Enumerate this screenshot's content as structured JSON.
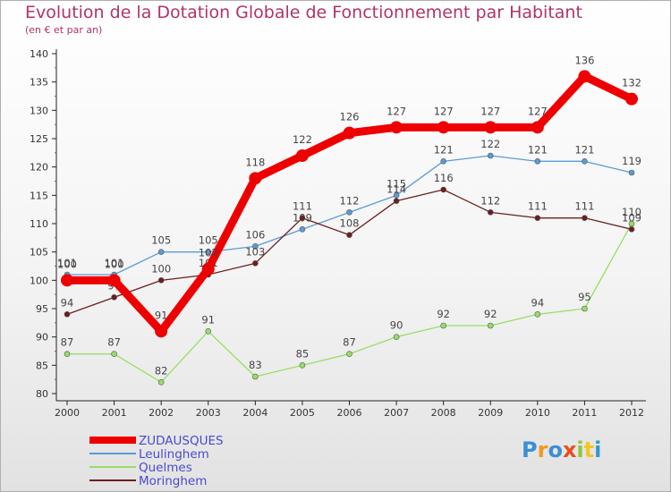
{
  "title": "Evolution de la Dotation Globale de Fonctionnement par Habitant",
  "subtitle": "(en € et par an)",
  "brand": {
    "letters": [
      "P",
      "r",
      "o",
      "x",
      "i",
      "t",
      "i"
    ],
    "colors": [
      "#3a8fd6",
      "#f29a1f",
      "#3a8fd6",
      "#e94e1b",
      "#8cc63f",
      "#f2c71f",
      "#2e9ad0"
    ]
  },
  "chart_data": {
    "type": "line",
    "x": [
      2000,
      2001,
      2002,
      2003,
      2004,
      2005,
      2006,
      2007,
      2008,
      2009,
      2010,
      2011,
      2012
    ],
    "ylim": [
      80,
      140
    ],
    "yticks": [
      80,
      85,
      90,
      95,
      100,
      105,
      110,
      115,
      120,
      125,
      130,
      135,
      140
    ],
    "grid": false,
    "legend": "bottom-left",
    "series": [
      {
        "name": "ZUDAUSQUES",
        "color": "#ee0000",
        "emphasis": true,
        "values": [
          100,
          100,
          91,
          102,
          118,
          122,
          126,
          127,
          127,
          127,
          127,
          136,
          132
        ]
      },
      {
        "name": "Leulinghem",
        "color": "#5b9bd5",
        "values": [
          101,
          101,
          105,
          105,
          106,
          109,
          112,
          115,
          121,
          122,
          121,
          121,
          119
        ]
      },
      {
        "name": "Quelmes",
        "color": "#99dd66",
        "values": [
          87,
          87,
          82,
          91,
          83,
          85,
          87,
          90,
          92,
          92,
          94,
          95,
          110
        ]
      },
      {
        "name": "Moringhem",
        "color": "#6b1f1f",
        "values": [
          94,
          97,
          100,
          101,
          103,
          111,
          108,
          114,
          116,
          112,
          111,
          111,
          109
        ]
      }
    ]
  }
}
